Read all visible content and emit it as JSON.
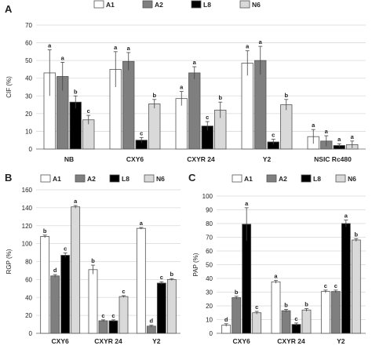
{
  "colors": {
    "A1": "#ffffff",
    "A2": "#7f7f7f",
    "L8": "#000000",
    "N6": "#d9d9d9",
    "stroke": "#555555",
    "grid": "#d9d9d9"
  },
  "chart_data": [
    {
      "panel": "A",
      "type": "bar",
      "ylabel": "CIF (%)",
      "ylim": [
        0,
        70
      ],
      "yticks": [
        0,
        10,
        20,
        30,
        40,
        50,
        60,
        70
      ],
      "grid": true,
      "legend": "top",
      "categories": [
        "NB",
        "CXY6",
        "CXYR 24",
        "Y2",
        "NSIC Rc480"
      ],
      "series": [
        {
          "name": "A1",
          "values": [
            43,
            45,
            28.5,
            48.5,
            7
          ],
          "errors": [
            13,
            10,
            4,
            7,
            4
          ],
          "labels": [
            "a",
            "a",
            "a",
            "a",
            "a"
          ]
        },
        {
          "name": "A2",
          "values": [
            41,
            49.5,
            43,
            50,
            4.5
          ],
          "errors": [
            8,
            5,
            3.5,
            8,
            3
          ],
          "labels": [
            "a",
            "a",
            "a",
            "a",
            "a"
          ]
        },
        {
          "name": "L8",
          "values": [
            26.5,
            5,
            13,
            4,
            2
          ],
          "errors": [
            3.5,
            1.5,
            2.5,
            1.5,
            1
          ],
          "labels": [
            "b",
            "c",
            "c",
            "c",
            "a"
          ]
        },
        {
          "name": "N6",
          "values": [
            16.5,
            25.5,
            22,
            25,
            2.5
          ],
          "errors": [
            2.5,
            2.5,
            4.5,
            3,
            2
          ],
          "labels": [
            "c",
            "b",
            "b",
            "b",
            "a"
          ]
        }
      ]
    },
    {
      "panel": "B",
      "type": "bar",
      "ylabel": "RGP (%)",
      "ylim": [
        0,
        160
      ],
      "yticks": [
        0,
        20,
        40,
        60,
        80,
        100,
        120,
        140,
        160
      ],
      "grid": true,
      "legend": "top",
      "categories": [
        "CXY6",
        "CXYR 24",
        "Y2"
      ],
      "series": [
        {
          "name": "A1",
          "values": [
            108,
            71,
            117
          ],
          "errors": [
            1.5,
            5,
            1
          ],
          "labels": [
            "b",
            "b",
            "a"
          ]
        },
        {
          "name": "A2",
          "values": [
            64,
            14,
            8
          ],
          "errors": [
            1.5,
            1,
            1
          ],
          "labels": [
            "d",
            "c",
            "d"
          ]
        },
        {
          "name": "L8",
          "values": [
            87,
            14,
            56
          ],
          "errors": [
            2.5,
            1,
            1.5
          ],
          "labels": [
            "c",
            "c",
            "c"
          ]
        },
        {
          "name": "N6",
          "values": [
            141,
            41,
            60
          ],
          "errors": [
            1.5,
            1,
            1
          ],
          "labels": [
            "a",
            "c",
            "b"
          ]
        }
      ]
    },
    {
      "panel": "C",
      "type": "bar",
      "ylabel": "PAP (%)",
      "ylim": [
        0,
        100
      ],
      "yticks": [
        0,
        10,
        20,
        30,
        40,
        50,
        60,
        70,
        80,
        90,
        100
      ],
      "grid": true,
      "legend": "top",
      "categories": [
        "CXY6",
        "CXYR 24",
        "Y2"
      ],
      "series": [
        {
          "name": "A1",
          "values": [
            6,
            37.5,
            30.5
          ],
          "errors": [
            1,
            1,
            1
          ],
          "labels": [
            "d",
            "a",
            "c"
          ]
        },
        {
          "name": "A2",
          "values": [
            26,
            16.5,
            30.5
          ],
          "errors": [
            1,
            1,
            1
          ],
          "labels": [
            "b",
            "b",
            "c"
          ]
        },
        {
          "name": "L8",
          "values": [
            79.5,
            6.5,
            80
          ],
          "errors": [
            12,
            1,
            2.5
          ],
          "labels": [
            "a",
            "c",
            "a"
          ]
        },
        {
          "name": "N6",
          "values": [
            15,
            17,
            68
          ],
          "errors": [
            1,
            1,
            1
          ],
          "labels": [
            "c",
            "b",
            "b"
          ]
        }
      ]
    }
  ]
}
